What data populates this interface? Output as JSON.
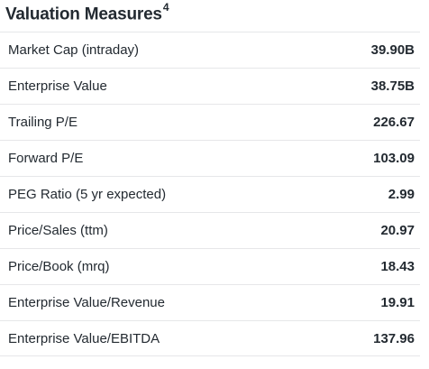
{
  "section": {
    "title": "Valuation Measures",
    "footnote": "4"
  },
  "rows": [
    {
      "label": "Market Cap (intraday)",
      "value": "39.90B"
    },
    {
      "label": "Enterprise Value",
      "value": "38.75B"
    },
    {
      "label": "Trailing P/E",
      "value": "226.67"
    },
    {
      "label": "Forward P/E",
      "value": "103.09"
    },
    {
      "label": "PEG Ratio (5 yr expected)",
      "value": "2.99"
    },
    {
      "label": "Price/Sales (ttm)",
      "value": "20.97"
    },
    {
      "label": "Price/Book (mrq)",
      "value": "18.43"
    },
    {
      "label": "Enterprise Value/Revenue",
      "value": "19.91"
    },
    {
      "label": "Enterprise Value/EBITDA",
      "value": "137.96"
    }
  ]
}
